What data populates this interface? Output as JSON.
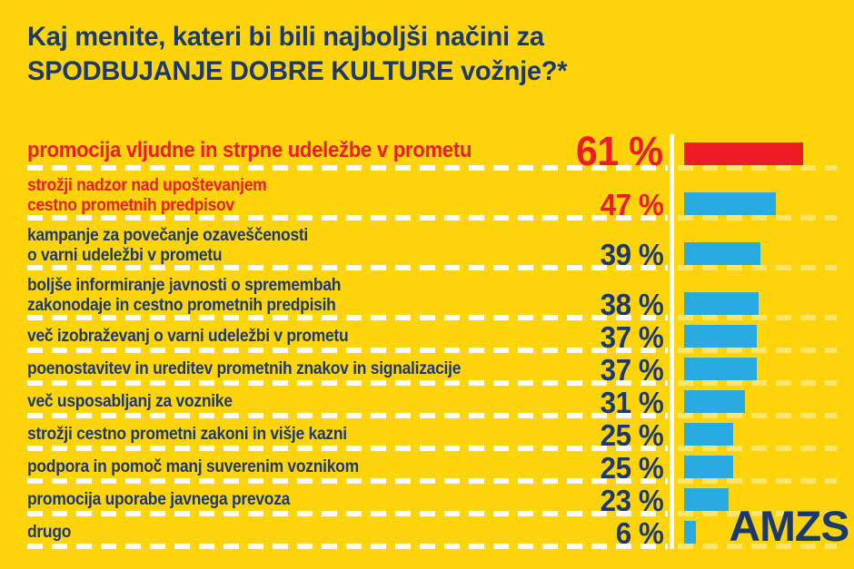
{
  "title": "Kaj menite, kateri bi bili najboljši načini za\nSPODBUJANJE DOBRE KULTURE vožnje?*",
  "logo_text": "AMZS",
  "colors": {
    "background": "#FFD40A",
    "red": "#ED1C24",
    "blue": "#29ABE2",
    "navy": "#1B3A6B",
    "separator": "#FFFFFF"
  },
  "chart_data": {
    "type": "bar",
    "orientation": "horizontal",
    "unit": "%",
    "title": "Kaj menite, kateri bi bili najboljši načini za SPODBUJANJE DOBRE KULTURE vožnje?*",
    "xlim": [
      0,
      61
    ],
    "grid": false,
    "legend": "none",
    "categories": [
      "promocija vljudne in strpne udeležbe v prometu",
      "strožji nadzor nad upoštevanjem cestno prometnih predpisov",
      "kampanje za povečanje ozaveščenosti o varni udeležbi v prometu",
      "boljše informiranje javnosti o spremembah zakonodaje in cestno prometnih predpisih",
      "več izobraževanj o varni udeležbi v prometu",
      "poenostavitev in ureditev prometnih znakov in signalizacije",
      "več usposabljanj za voznike",
      "strožji cestno prometni zakoni in višje kazni",
      "podpora in pomoč manj suverenim voznikom",
      "promocija uporabe javnega prevoza",
      "drugo"
    ],
    "values": [
      61,
      47,
      39,
      38,
      37,
      37,
      31,
      25,
      25,
      23,
      6
    ],
    "rows": [
      {
        "label": "promocija vljudne in strpne udeležbe v prometu",
        "value": 61,
        "value_label": "61 %",
        "text_color": "red",
        "bar_color": "red",
        "emphasis": "large",
        "lines": 1
      },
      {
        "label": "strožji nadzor nad upoštevanjem\ncestno prometnih predpisov",
        "value": 47,
        "value_label": "47 %",
        "text_color": "red",
        "bar_color": "blue",
        "lines": 2
      },
      {
        "label": "kampanje za povečanje ozaveščenosti\no varni udeležbi v prometu",
        "value": 39,
        "value_label": "39 %",
        "text_color": "navy",
        "bar_color": "blue",
        "lines": 2
      },
      {
        "label": "boljše informiranje javnosti o spremembah\nzakonodaje in cestno prometnih predpisih",
        "value": 38,
        "value_label": "38 %",
        "text_color": "navy",
        "bar_color": "blue",
        "lines": 2
      },
      {
        "label": "več izobraževanj o varni udeležbi v prometu",
        "value": 37,
        "value_label": "37 %",
        "text_color": "navy",
        "bar_color": "blue",
        "lines": 1
      },
      {
        "label": "poenostavitev in ureditev prometnih znakov in signalizacije",
        "value": 37,
        "value_label": "37 %",
        "text_color": "navy",
        "bar_color": "blue",
        "lines": 1
      },
      {
        "label": "več usposabljanj za voznike",
        "value": 31,
        "value_label": "31 %",
        "text_color": "navy",
        "bar_color": "blue",
        "lines": 1
      },
      {
        "label": "strožji cestno prometni zakoni in višje kazni",
        "value": 25,
        "value_label": "25 %",
        "text_color": "navy",
        "bar_color": "blue",
        "lines": 1
      },
      {
        "label": "podpora in pomoč manj suverenim voznikom",
        "value": 25,
        "value_label": "25 %",
        "text_color": "navy",
        "bar_color": "blue",
        "lines": 1
      },
      {
        "label": "promocija uporabe javnega prevoza",
        "value": 23,
        "value_label": "23 %",
        "text_color": "navy",
        "bar_color": "blue",
        "lines": 1
      },
      {
        "label": "drugo",
        "value": 6,
        "value_label": "6 %",
        "text_color": "navy",
        "bar_color": "blue",
        "lines": 1
      }
    ]
  }
}
